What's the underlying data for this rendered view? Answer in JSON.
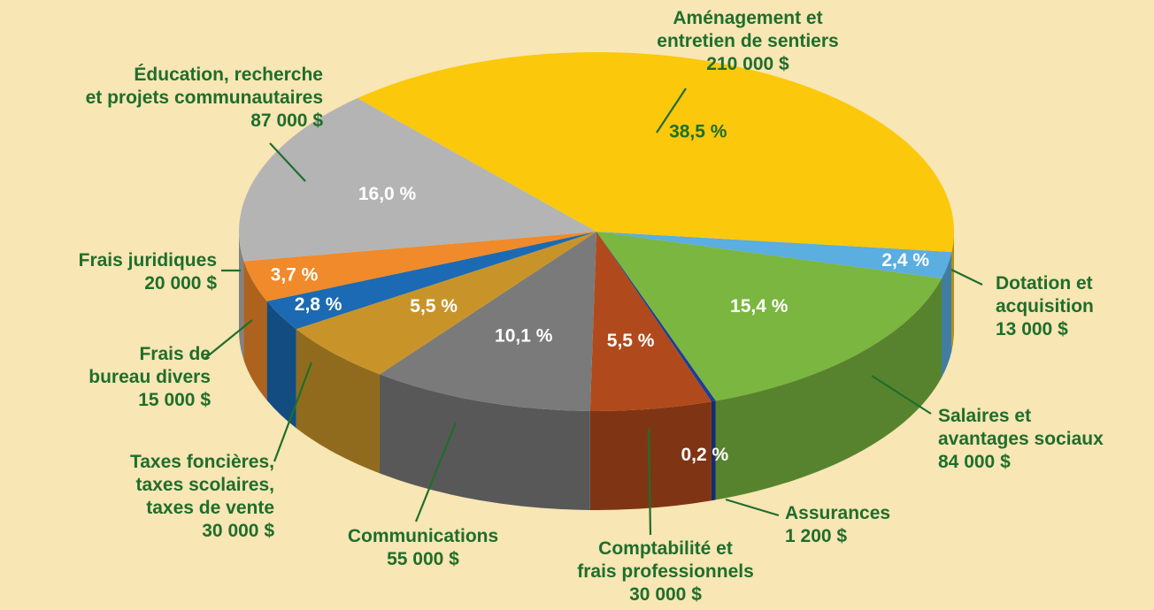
{
  "chart_data": {
    "type": "pie3d",
    "categories": [
      "Dotation et\nacquisition",
      "Salaires et\navantages sociaux",
      "Assurances",
      "Comptabilité et\nfrais professionnels",
      "Communications",
      "Taxes foncières,\ntaxes scolaires,\ntaxes de vente",
      "Frais de\nbureau divers",
      "Frais juridiques",
      "Éducation, recherche\net projets communautaires",
      "Aménagement et\nentretien de sentiers"
    ],
    "values": [
      2.4,
      15.4,
      0.2,
      5.5,
      10.1,
      5.5,
      2.8,
      3.7,
      16.0,
      38.5
    ],
    "value_labels": [
      "2,4 %",
      "15,4 %",
      "0,2 %",
      "5,5 %",
      "10,1 %",
      "5,5 %",
      "2,8 %",
      "3,7 %",
      "16,0 %",
      "38,5 %"
    ],
    "amounts": [
      13000,
      84000,
      1200,
      30000,
      55000,
      30000,
      15000,
      20000,
      87000,
      210000
    ],
    "amount_labels": [
      "13 000 $",
      "84 000 $",
      "1 200 $",
      "30 000 $",
      "55 000 $",
      "30 000 $",
      "15 000 $",
      "20 000 $",
      "87 000 $",
      "210 000 $"
    ],
    "colors": [
      "#5aaee0",
      "#7ab640",
      "#1a3e9a",
      "#b04a1c",
      "#7a7a7a",
      "#c8942a",
      "#1b6ab3",
      "#f08a2a",
      "#b4b4b4",
      "#fbc80c"
    ]
  }
}
